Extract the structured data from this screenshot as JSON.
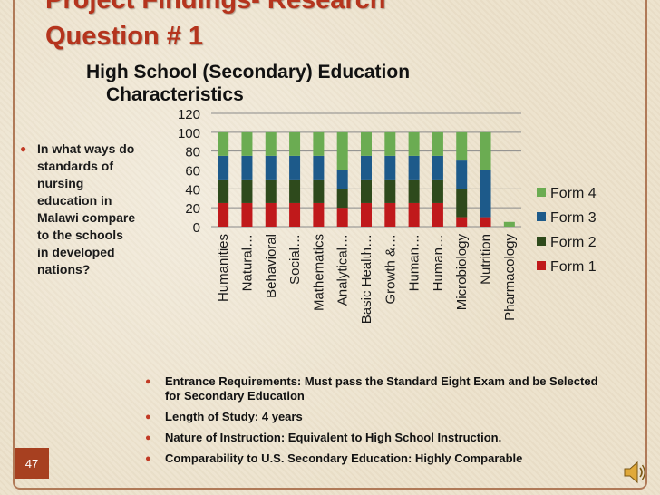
{
  "slide": {
    "title_line1": "Project Findings- Research",
    "title_line2": "Question # 1",
    "subtitle_line1": "High School (Secondary) Education",
    "subtitle_line2": "Characteristics",
    "question": "In what ways do standards of nursing education in Malawi compare to the schools in developed nations?",
    "notes": [
      "Entrance Requirements:  Must pass the Standard Eight Exam and be Selected for Secondary Education",
      "Length of Study: 4 years",
      "Nature of Instruction:  Equivalent to High School Instruction.",
      "Comparability to U.S. Secondary Education: Highly Comparable"
    ],
    "page_number": "47",
    "colors": {
      "title": "#b5341d",
      "accent": "#a74020"
    }
  },
  "chart_data": {
    "type": "bar",
    "stacked": true,
    "categories": [
      "Humanities",
      "Natural…",
      "Behavioral",
      "Social…",
      "Mathematics",
      "Analytical…",
      "Basic Health…",
      "Growth &…",
      "Human…",
      "Human…",
      "Microbiology",
      "Nutrition",
      "Pharmacology"
    ],
    "series": [
      {
        "name": "Form 1",
        "color": "#c0191b",
        "values": [
          25,
          25,
          25,
          25,
          25,
          20,
          25,
          25,
          25,
          25,
          10,
          10,
          0
        ]
      },
      {
        "name": "Form 2",
        "color": "#2e4a1c",
        "values": [
          25,
          25,
          25,
          25,
          25,
          20,
          25,
          25,
          25,
          25,
          30,
          0,
          0
        ]
      },
      {
        "name": "Form 3",
        "color": "#1d5a8a",
        "values": [
          25,
          25,
          25,
          25,
          25,
          20,
          25,
          25,
          25,
          25,
          30,
          50,
          0
        ]
      },
      {
        "name": "Form 4",
        "color": "#6bac52",
        "values": [
          25,
          25,
          25,
          25,
          25,
          40,
          25,
          25,
          25,
          25,
          30,
          40,
          5
        ]
      }
    ],
    "ylim": [
      0,
      120
    ],
    "yticks": [
      0,
      20,
      40,
      60,
      80,
      100,
      120
    ],
    "grid": true,
    "legend_position": "right"
  }
}
